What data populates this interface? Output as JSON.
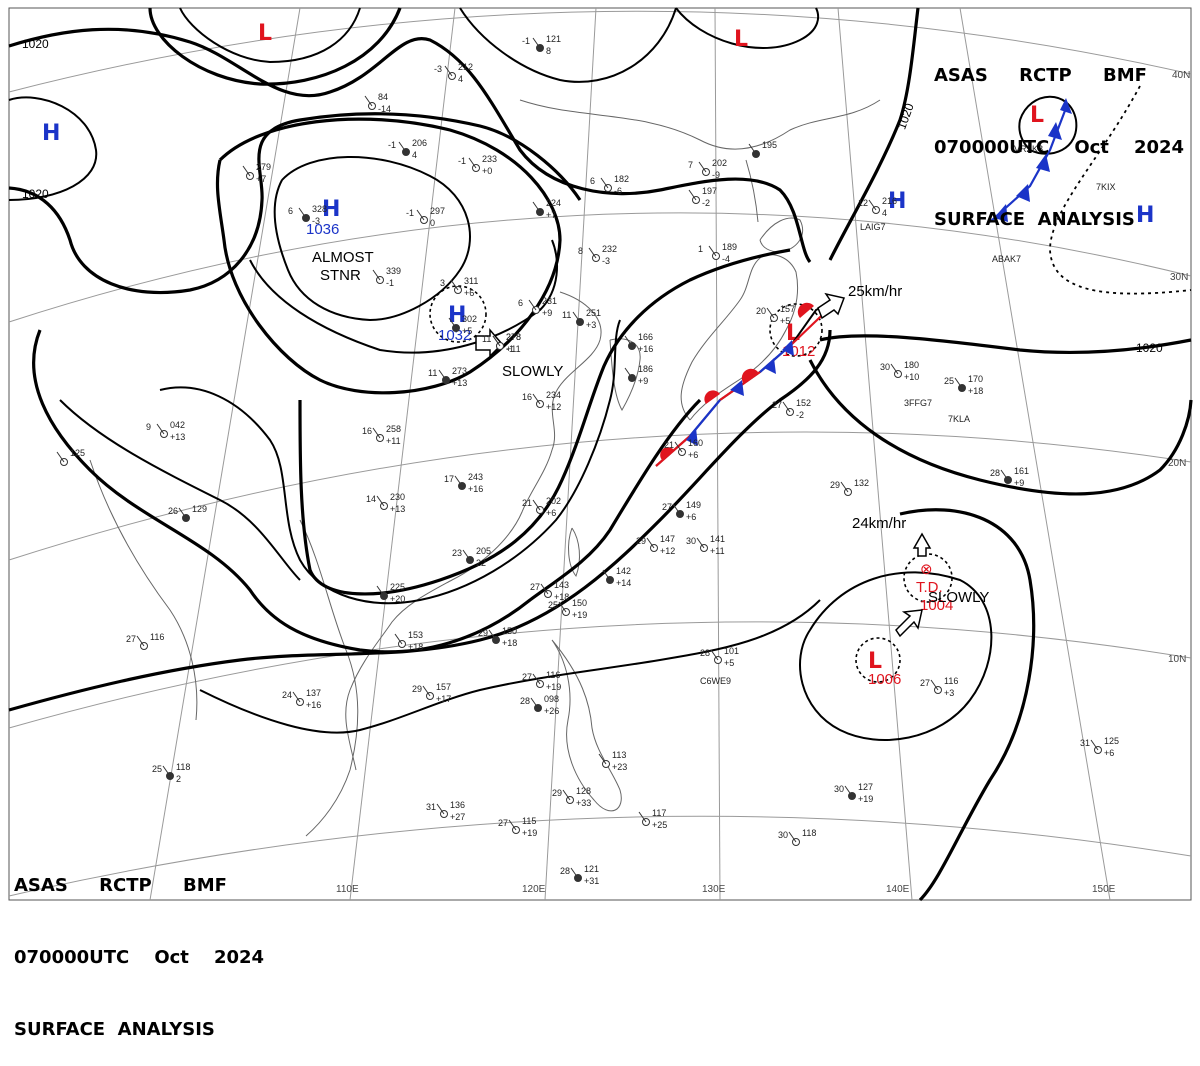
{
  "header": {
    "line1": "ASAS     RCTP     BMF",
    "line2": "070000UTC    Oct    2024",
    "line3": "SURFACE  ANALYSIS"
  },
  "colors": {
    "high": "#1b34c8",
    "low": "#e0141e",
    "warm_front": "#e0141e",
    "cold_front": "#1b34c8"
  },
  "grid_labels": {
    "lon": [
      "110E",
      "120E",
      "130E",
      "140E",
      "150E"
    ],
    "lat": [
      "40N",
      "30N",
      "20N",
      "10N"
    ]
  },
  "isobar_labels": [
    "1020",
    "1020",
    "1020",
    "1020"
  ],
  "systems": [
    {
      "type": "H",
      "value": "1036"
    },
    {
      "type": "H",
      "value": "1032"
    },
    {
      "type": "H",
      "value": ""
    },
    {
      "type": "H",
      "value": ""
    },
    {
      "type": "H",
      "value": ""
    },
    {
      "type": "L",
      "value": "1012"
    },
    {
      "type": "L",
      "value": "1006"
    },
    {
      "type": "L",
      "value": ""
    },
    {
      "type": "L",
      "value": ""
    },
    {
      "type": "L",
      "value": ""
    }
  ],
  "storm": {
    "symbol": "⊗",
    "label": "T.D.",
    "value": "1004"
  },
  "annotations": {
    "almost": "ALMOST",
    "stnr": "STNR",
    "slowly_china": "SLOWLY",
    "slowly_pacific": "SLOWLY",
    "speed_low": "25km/hr",
    "speed_td": "24km/hr"
  },
  "stations": [
    {
      "pressure": "121",
      "temp": "-1",
      "dew": "8"
    },
    {
      "pressure": "212",
      "temp": "-3",
      "dew": "4"
    },
    {
      "pressure": "84",
      "temp": "",
      "dew": "-14"
    },
    {
      "pressure": "206",
      "temp": "-1",
      "dew": "4"
    },
    {
      "pressure": "233",
      "temp": "-1",
      "dew": "+0"
    },
    {
      "pressure": "182",
      "temp": "6",
      "dew": "-6"
    },
    {
      "pressure": "224",
      "temp": "",
      "dew": "+7"
    },
    {
      "pressure": "297",
      "temp": "-1",
      "dew": "0"
    },
    {
      "pressure": "278",
      "temp": "11",
      "dew": "-1"
    },
    {
      "pressure": "328",
      "temp": "6",
      "dew": "-3"
    },
    {
      "pressure": "339",
      "temp": "",
      "dew": "-1"
    },
    {
      "pressure": "311",
      "temp": "3",
      "dew": "+6"
    },
    {
      "pressure": "302",
      "temp": "",
      "dew": "+5"
    },
    {
      "pressure": "278",
      "temp": "",
      "dew": "+11"
    },
    {
      "pressure": "231",
      "temp": "6",
      "dew": "+9"
    },
    {
      "pressure": "251",
      "temp": "11",
      "dew": "+3"
    },
    {
      "pressure": "232",
      "temp": "8",
      "dew": "-3"
    },
    {
      "pressure": "189",
      "temp": "1",
      "dew": "-4"
    },
    {
      "pressure": "273",
      "temp": "11",
      "dew": "+13"
    },
    {
      "pressure": "234",
      "temp": "16",
      "dew": "+12"
    },
    {
      "pressure": "258",
      "temp": "16",
      "dew": "+11"
    },
    {
      "pressure": "243",
      "temp": "17",
      "dew": "+16"
    },
    {
      "pressure": "230",
      "temp": "14",
      "dew": "+13"
    },
    {
      "pressure": "202",
      "temp": "21",
      "dew": "+6"
    },
    {
      "pressure": "205",
      "temp": "23",
      "dew": "22"
    },
    {
      "pressure": "042",
      "temp": "9",
      "dew": "+13"
    },
    {
      "pressure": "125",
      "temp": "",
      "dew": ""
    },
    {
      "pressure": "129",
      "temp": "26",
      "dew": ""
    },
    {
      "pressure": "116",
      "temp": "27",
      "dew": ""
    },
    {
      "pressure": "137",
      "temp": "24",
      "dew": "+16"
    },
    {
      "pressure": "118",
      "temp": "25",
      "dew": "2"
    },
    {
      "pressure": "136",
      "temp": "31",
      "dew": "+27"
    },
    {
      "pressure": "115",
      "temp": "27",
      "dew": "+19"
    },
    {
      "pressure": "121",
      "temp": "28",
      "dew": "+31"
    },
    {
      "pressure": "128",
      "temp": "29",
      "dew": "+33"
    },
    {
      "pressure": "117",
      "temp": "",
      "dew": "+25"
    },
    {
      "pressure": "098",
      "temp": "28",
      "dew": "+26"
    },
    {
      "pressure": "116",
      "temp": "27",
      "dew": "+19"
    },
    {
      "pressure": "113",
      "temp": "",
      "dew": "+23"
    },
    {
      "pressure": "150",
      "temp": "29",
      "dew": "+18"
    },
    {
      "pressure": "150",
      "temp": "25",
      "dew": "+19"
    },
    {
      "pressure": "143",
      "temp": "27",
      "dew": "+18"
    },
    {
      "pressure": "142",
      "temp": "",
      "dew": "+14"
    },
    {
      "pressure": "147",
      "temp": "29",
      "dew": "+12"
    },
    {
      "pressure": "141",
      "temp": "30",
      "dew": "+11"
    },
    {
      "pressure": "149",
      "temp": "27",
      "dew": "+6"
    },
    {
      "pressure": "101",
      "temp": "28",
      "dew": "+5"
    },
    {
      "pressure": "152",
      "temp": "27",
      "dew": "-2"
    },
    {
      "pressure": "161",
      "temp": "28",
      "dew": "+9"
    },
    {
      "pressure": "132",
      "temp": "29",
      "dew": ""
    },
    {
      "pressure": "180",
      "temp": "30",
      "dew": "+10"
    },
    {
      "pressure": "170",
      "temp": "25",
      "dew": "+18"
    },
    {
      "pressure": "216",
      "temp": "12",
      "dew": "4"
    },
    {
      "pressure": "125",
      "temp": "31",
      "dew": "+6"
    },
    {
      "pressure": "127",
      "temp": "30",
      "dew": "+19"
    },
    {
      "pressure": "118",
      "temp": "30",
      "dew": ""
    },
    {
      "pressure": "116",
      "temp": "27",
      "dew": "+3"
    },
    {
      "pressure": "166",
      "temp": "",
      "dew": "+16"
    },
    {
      "pressure": "197",
      "temp": "",
      "dew": "-2"
    },
    {
      "pressure": "202",
      "temp": "7",
      "dew": "-9"
    },
    {
      "pressure": "195",
      "temp": "",
      "dew": ""
    },
    {
      "pressure": "157",
      "temp": "20",
      "dew": "+5"
    },
    {
      "pressure": "160",
      "temp": "21",
      "dew": "+6"
    },
    {
      "pressure": "186",
      "temp": "",
      "dew": "+9"
    },
    {
      "pressure": "153",
      "temp": "",
      "dew": "+18"
    },
    {
      "pressure": "279",
      "temp": "",
      "dew": "+7"
    },
    {
      "pressure": "225",
      "temp": "",
      "dew": "+20"
    },
    {
      "pressure": "157",
      "temp": "29",
      "dew": "+17"
    }
  ],
  "station_ids": [
    "VRZK8",
    "7KIX",
    "ABAK7",
    "LAIG7",
    "3FFG7",
    "7KLA",
    "C6WE9"
  ]
}
